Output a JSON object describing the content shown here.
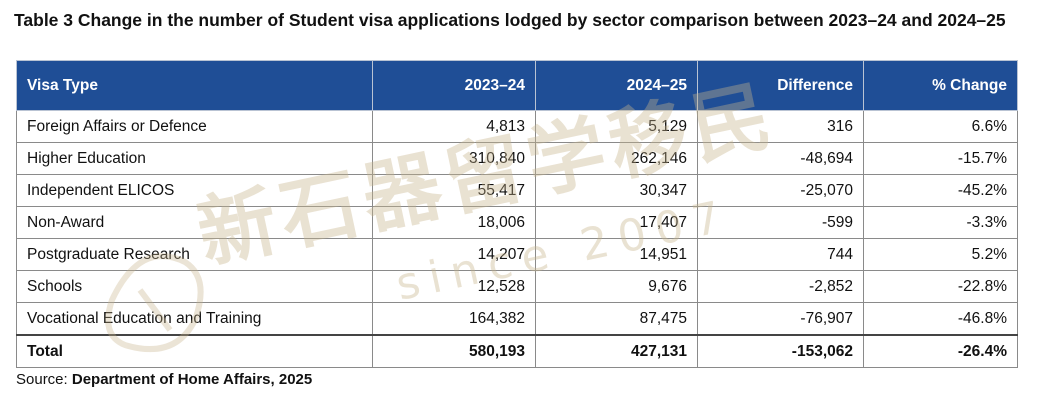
{
  "caption": "Table 3 Change in the number of Student visa applications lodged by sector comparison between 2023–24 and 2024–25",
  "table": {
    "headers": [
      "Visa Type",
      "2023–24",
      "2024–25",
      "Difference",
      "% Change"
    ],
    "rows": [
      [
        "Foreign Affairs or Defence",
        "4,813",
        "5,129",
        "316",
        "6.6%"
      ],
      [
        "Higher Education",
        "310,840",
        "262,146",
        "-48,694",
        "-15.7%"
      ],
      [
        "Independent ELICOS",
        "55,417",
        "30,347",
        "-25,070",
        "-45.2%"
      ],
      [
        "Non-Award",
        "18,006",
        "17,407",
        "-599",
        "-3.3%"
      ],
      [
        "Postgraduate Research",
        "14,207",
        "14,951",
        "744",
        "5.2%"
      ],
      [
        "Schools",
        "12,528",
        "9,676",
        "-2,852",
        "-22.8%"
      ],
      [
        "Vocational Education and Training",
        "164,382",
        "87,475",
        "-76,907",
        "-46.8%"
      ]
    ],
    "total": [
      "Total",
      "580,193",
      "427,131",
      "-153,062",
      "-26.4%"
    ]
  },
  "source": {
    "prefix": "Source: ",
    "text": "Department of Home Affairs, 2025"
  },
  "watermark": {
    "chars": "新石器留学移民",
    "since": "since 2007"
  },
  "colors": {
    "header_bg": "#1f4e96",
    "header_text": "#ffffff",
    "watermark": "#c8b48c"
  }
}
